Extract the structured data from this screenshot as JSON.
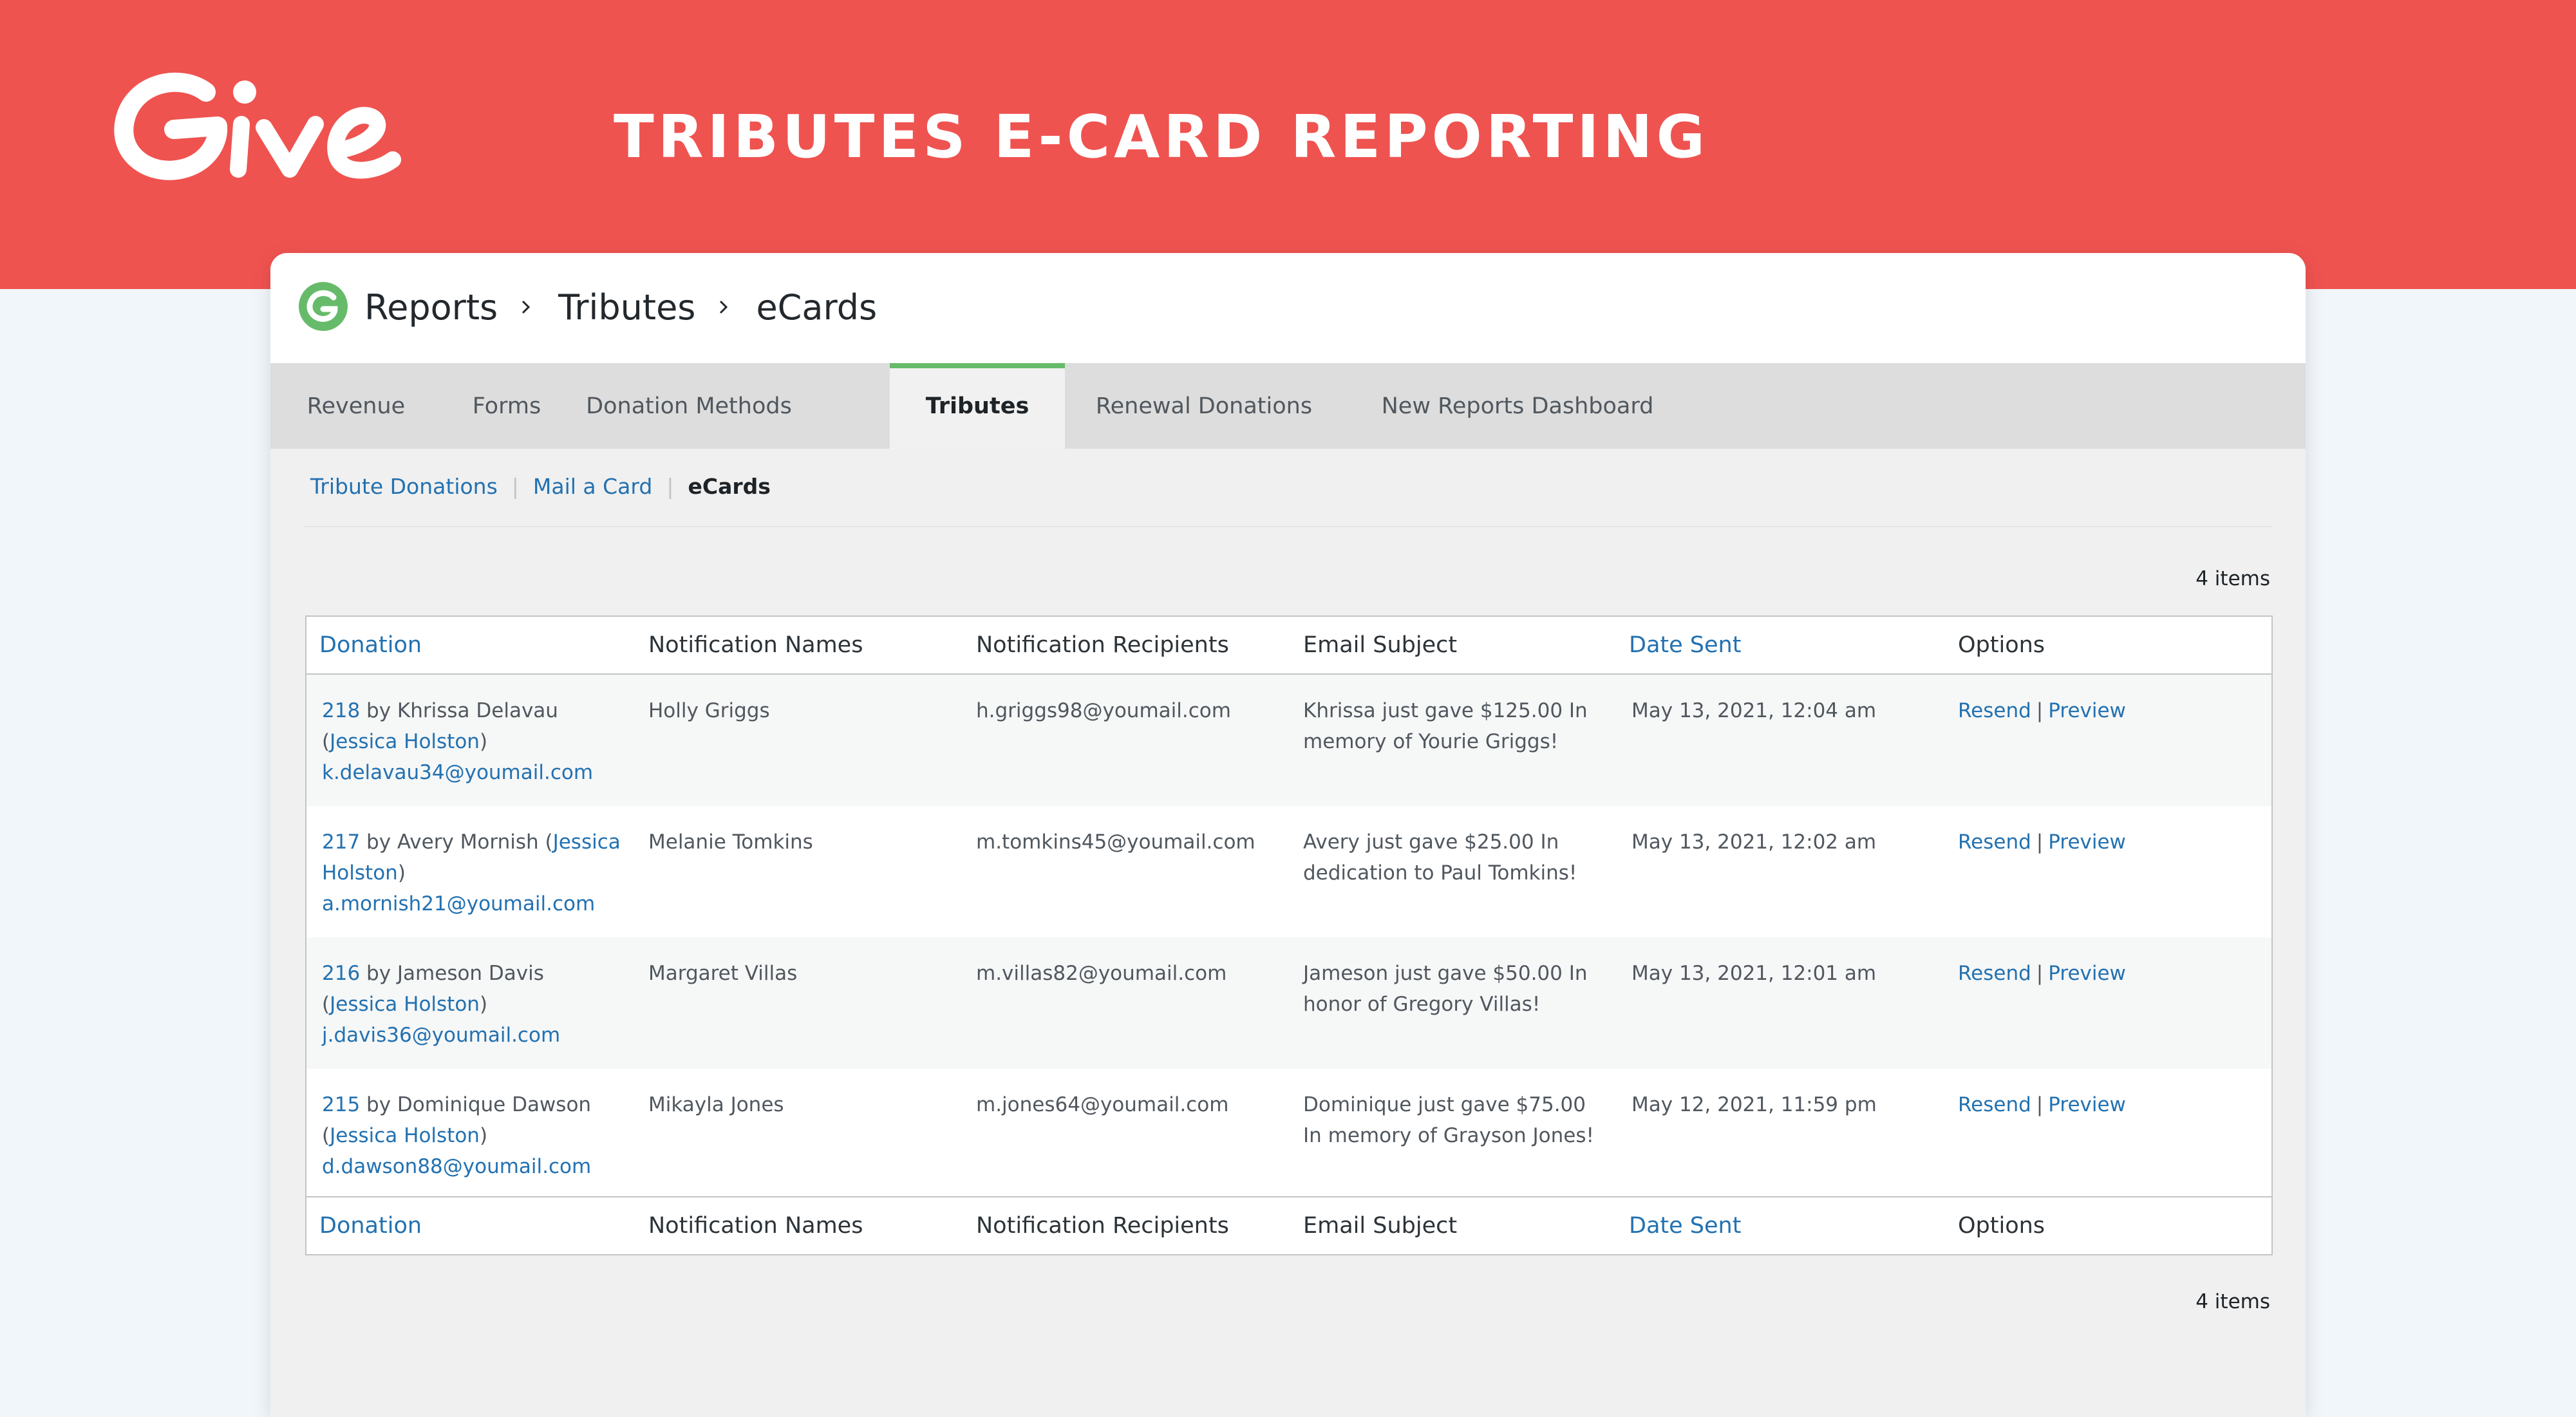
{
  "banner": {
    "logo_text": "Give",
    "title": "TRIBUTES E-CARD REPORTING"
  },
  "breadcrumb": [
    "Reports",
    "Tributes",
    "eCards"
  ],
  "tabs": [
    {
      "label": "Revenue"
    },
    {
      "label": "Forms"
    },
    {
      "label": "Donation Methods"
    },
    {
      "label": "Tributes",
      "active": true
    },
    {
      "label": "Renewal Donations"
    },
    {
      "label": "New Reports Dashboard"
    }
  ],
  "subnav": {
    "links": [
      "Tribute Donations",
      "Mail a Card"
    ],
    "current": "eCards"
  },
  "items_count": "4 items",
  "table": {
    "columns": [
      "Donation",
      "Notification Names",
      "Notification Recipients",
      "Email Subject",
      "Date Sent",
      "Options"
    ],
    "sortable_columns": [
      "Donation",
      "Date Sent"
    ],
    "rows": [
      {
        "id": "218",
        "by": "by Khrissa Delavau (",
        "author": "Jessica Holston",
        "close": ")",
        "email": "k.delavau34@youmail.com",
        "names": "Holly Griggs",
        "recipient": "h.griggs98@youmail.com",
        "subject": "Khrissa just gave $125.00 In memory of Yourie Griggs!",
        "date": "May 13, 2021, 12:04 am",
        "resend": "Resend",
        "preview": "Preview"
      },
      {
        "id": "217",
        "by": "by Avery Mornish (",
        "author": "Jessica Holston",
        "close": ")",
        "email": "a.mornish21@youmail.com",
        "names": "Melanie Tomkins",
        "recipient": "m.tomkins45@youmail.com",
        "subject": "Avery just gave $25.00 In dedication to Paul Tomkins!",
        "date": "May 13, 2021, 12:02 am",
        "resend": "Resend",
        "preview": "Preview"
      },
      {
        "id": "216",
        "by": "by Jameson Davis (",
        "author": "Jessica Holston",
        "close": ")",
        "email": "j.davis36@youmail.com",
        "names": "Margaret Villas",
        "recipient": "m.villas82@youmail.com",
        "subject": "Jameson just gave $50.00 In honor of Gregory Villas!",
        "date": "May 13, 2021, 12:01 am",
        "resend": "Resend",
        "preview": "Preview"
      },
      {
        "id": "215",
        "by": "by Dominique Dawson (",
        "author": "Jessica Holston",
        "close": ")",
        "email": "d.dawson88@youmail.com",
        "names": "Mikayla Jones",
        "recipient": "m.jones64@youmail.com",
        "subject": "Dominique just gave $75.00 In memory of Grayson Jones!",
        "date": "May 12, 2021, 11:59 pm",
        "resend": "Resend",
        "preview": "Preview"
      }
    ]
  },
  "colors": {
    "brand_red": "#ef5350",
    "brand_green": "#66bb6a",
    "link_blue": "#2271b1"
  }
}
